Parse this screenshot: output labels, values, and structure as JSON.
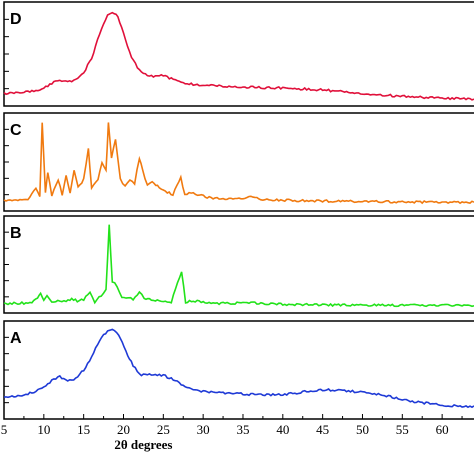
{
  "chart_data": {
    "type": "line",
    "xlabel": "2θ degrees",
    "x_ticks": [
      5,
      10,
      15,
      20,
      25,
      30,
      35,
      40,
      45,
      50,
      55,
      60
    ],
    "xlim": [
      5,
      64
    ],
    "grid": false,
    "panels": [
      {
        "label": "D",
        "color": "#e0103a",
        "points": [
          [
            5,
            0.07
          ],
          [
            7,
            0.08
          ],
          [
            9,
            0.1
          ],
          [
            10,
            0.13
          ],
          [
            11,
            0.18
          ],
          [
            12,
            0.22
          ],
          [
            13,
            0.2
          ],
          [
            14,
            0.22
          ],
          [
            15,
            0.3
          ],
          [
            16,
            0.45
          ],
          [
            17,
            0.72
          ],
          [
            18,
            0.92
          ],
          [
            18.6,
            0.96
          ],
          [
            19.3,
            0.9
          ],
          [
            20,
            0.72
          ],
          [
            21,
            0.47
          ],
          [
            22,
            0.32
          ],
          [
            23,
            0.26
          ],
          [
            24,
            0.26
          ],
          [
            25,
            0.27
          ],
          [
            26,
            0.23
          ],
          [
            28,
            0.18
          ],
          [
            30,
            0.16
          ],
          [
            35,
            0.14
          ],
          [
            40,
            0.13
          ],
          [
            45,
            0.11
          ],
          [
            50,
            0.07
          ],
          [
            55,
            0.04
          ],
          [
            60,
            0.02
          ],
          [
            64,
            0.01
          ]
        ]
      },
      {
        "label": "C",
        "color": "#f07a10",
        "points": [
          [
            5,
            0.05
          ],
          [
            8,
            0.06
          ],
          [
            9,
            0.2
          ],
          [
            9.5,
            0.1
          ],
          [
            9.8,
            0.95
          ],
          [
            10.2,
            0.15
          ],
          [
            10.5,
            0.38
          ],
          [
            11,
            0.1
          ],
          [
            11.8,
            0.3
          ],
          [
            12.3,
            0.12
          ],
          [
            12.8,
            0.35
          ],
          [
            13.3,
            0.15
          ],
          [
            13.8,
            0.4
          ],
          [
            14.3,
            0.2
          ],
          [
            15,
            0.3
          ],
          [
            15.6,
            0.65
          ],
          [
            16,
            0.2
          ],
          [
            16.8,
            0.3
          ],
          [
            17.3,
            0.5
          ],
          [
            17.8,
            0.4
          ],
          [
            18.1,
            0.95
          ],
          [
            18.5,
            0.55
          ],
          [
            19,
            0.75
          ],
          [
            19.6,
            0.3
          ],
          [
            20.2,
            0.22
          ],
          [
            20.8,
            0.3
          ],
          [
            21.4,
            0.25
          ],
          [
            22,
            0.55
          ],
          [
            22.4,
            0.4
          ],
          [
            23,
            0.22
          ],
          [
            23.6,
            0.28
          ],
          [
            24.5,
            0.2
          ],
          [
            25.5,
            0.15
          ],
          [
            26.2,
            0.12
          ],
          [
            27.2,
            0.32
          ],
          [
            27.7,
            0.12
          ],
          [
            28.5,
            0.15
          ],
          [
            29.3,
            0.12
          ],
          [
            31,
            0.08
          ],
          [
            33,
            0.07
          ],
          [
            36,
            0.09
          ],
          [
            38,
            0.06
          ],
          [
            42,
            0.05
          ],
          [
            50,
            0.04
          ],
          [
            64,
            0.03
          ]
        ]
      },
      {
        "label": "B",
        "color": "#22e21a",
        "points": [
          [
            5,
            0.04
          ],
          [
            8.5,
            0.05
          ],
          [
            9.2,
            0.1
          ],
          [
            9.6,
            0.17
          ],
          [
            10,
            0.08
          ],
          [
            10.4,
            0.14
          ],
          [
            11,
            0.05
          ],
          [
            12,
            0.08
          ],
          [
            12.8,
            0.06
          ],
          [
            13.5,
            0.1
          ],
          [
            14.2,
            0.07
          ],
          [
            15,
            0.09
          ],
          [
            15.8,
            0.18
          ],
          [
            16.4,
            0.06
          ],
          [
            17.2,
            0.14
          ],
          [
            17.8,
            0.2
          ],
          [
            18.2,
            0.98
          ],
          [
            18.6,
            0.3
          ],
          [
            19.2,
            0.25
          ],
          [
            19.8,
            0.1
          ],
          [
            20.6,
            0.12
          ],
          [
            21.2,
            0.08
          ],
          [
            22,
            0.18
          ],
          [
            22.6,
            0.1
          ],
          [
            23.5,
            0.08
          ],
          [
            25,
            0.07
          ],
          [
            26,
            0.06
          ],
          [
            27.3,
            0.42
          ],
          [
            27.8,
            0.06
          ],
          [
            29,
            0.07
          ],
          [
            31,
            0.04
          ],
          [
            36,
            0.05
          ],
          [
            40,
            0.03
          ],
          [
            50,
            0.02
          ],
          [
            64,
            0.02
          ]
        ]
      },
      {
        "label": "A",
        "color": "#1f3ad6",
        "points": [
          [
            5,
            0.18
          ],
          [
            7,
            0.2
          ],
          [
            9,
            0.25
          ],
          [
            10,
            0.3
          ],
          [
            11,
            0.38
          ],
          [
            12,
            0.42
          ],
          [
            13,
            0.38
          ],
          [
            14,
            0.4
          ],
          [
            15,
            0.5
          ],
          [
            16,
            0.65
          ],
          [
            17,
            0.85
          ],
          [
            18,
            0.95
          ],
          [
            18.6,
            0.98
          ],
          [
            19.4,
            0.9
          ],
          [
            20.3,
            0.72
          ],
          [
            21.2,
            0.55
          ],
          [
            22,
            0.45
          ],
          [
            23,
            0.44
          ],
          [
            24,
            0.45
          ],
          [
            25,
            0.44
          ],
          [
            26,
            0.4
          ],
          [
            28,
            0.3
          ],
          [
            30,
            0.25
          ],
          [
            35,
            0.22
          ],
          [
            40,
            0.21
          ],
          [
            43,
            0.25
          ],
          [
            45,
            0.27
          ],
          [
            48,
            0.26
          ],
          [
            50,
            0.24
          ],
          [
            53,
            0.2
          ],
          [
            56,
            0.14
          ],
          [
            60,
            0.09
          ],
          [
            64,
            0.07
          ]
        ]
      }
    ]
  }
}
